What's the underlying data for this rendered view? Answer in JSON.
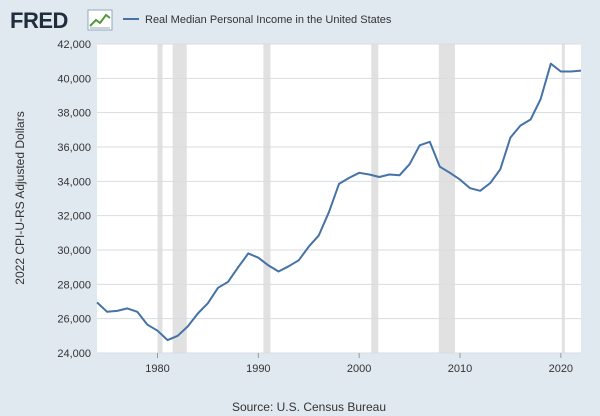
{
  "logo": {
    "text": "FRED",
    "icon": "line-chart-icon"
  },
  "colors": {
    "background": "#e1e9f0",
    "plot_background": "#ffffff",
    "line": "#4572a7",
    "recession": "#e1e1e1",
    "grid": "#d7dde3"
  },
  "chart_data": {
    "type": "line",
    "title": "",
    "legend": "top-left",
    "grid": true,
    "xlabel": "",
    "ylabel": "2022 CPI-U-RS Adjusted Dollars",
    "source": "Source: U.S. Census Bureau",
    "xlim": [
      1974,
      2022
    ],
    "ylim": [
      24000,
      42000
    ],
    "x_ticks": [
      1980,
      1990,
      2000,
      2010,
      2020
    ],
    "y_ticks": [
      {
        "value": 24000,
        "label": "24,000"
      },
      {
        "value": 26000,
        "label": "26,000"
      },
      {
        "value": 28000,
        "label": "28,000"
      },
      {
        "value": 30000,
        "label": "30,000"
      },
      {
        "value": 32000,
        "label": "32,000"
      },
      {
        "value": 34000,
        "label": "34,000"
      },
      {
        "value": 36000,
        "label": "36,000"
      },
      {
        "value": 38000,
        "label": "38,000"
      },
      {
        "value": 40000,
        "label": "40,000"
      },
      {
        "value": 42000,
        "label": "42,000"
      }
    ],
    "recessions": [
      [
        1980.0,
        1980.5
      ],
      [
        1981.5,
        1982.9
      ],
      [
        1990.5,
        1991.2
      ],
      [
        2001.2,
        2001.9
      ],
      [
        2007.9,
        2009.5
      ],
      [
        2020.1,
        2020.4
      ]
    ],
    "series": [
      {
        "name": "Real Median Personal Income in the United States",
        "x": [
          1974,
          1975,
          1976,
          1977,
          1978,
          1979,
          1980,
          1981,
          1982,
          1983,
          1984,
          1985,
          1986,
          1987,
          1988,
          1989,
          1990,
          1991,
          1992,
          1993,
          1994,
          1995,
          1996,
          1997,
          1998,
          1999,
          2000,
          2001,
          2002,
          2003,
          2004,
          2005,
          2006,
          2007,
          2008,
          2009,
          2010,
          2011,
          2012,
          2013,
          2014,
          2015,
          2016,
          2017,
          2018,
          2019,
          2020,
          2021,
          2022
        ],
        "y": [
          26950,
          26400,
          26450,
          26600,
          26400,
          25650,
          25300,
          24750,
          25000,
          25550,
          26300,
          26900,
          27800,
          28150,
          29000,
          29800,
          29550,
          29100,
          28750,
          29050,
          29400,
          30200,
          30850,
          32200,
          33850,
          34200,
          34500,
          34400,
          34250,
          34400,
          34350,
          35000,
          36100,
          36300,
          34850,
          34500,
          34100,
          33600,
          33450,
          33900,
          34700,
          36550,
          37250,
          37600,
          38800,
          40850,
          40400,
          40400,
          40450
        ]
      }
    ]
  }
}
